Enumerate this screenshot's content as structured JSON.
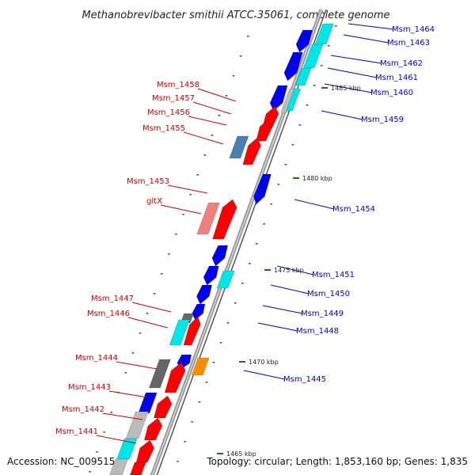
{
  "title": "Methanobrevibacter smithii ATCC 35061, complete genome",
  "accession": "Accession: NC_009515",
  "topology": "Topology: circular; Length: 1,853,160 bp; Genes: 1,835",
  "colors": {
    "forward_cds": "#ff0000",
    "reverse_cds": "#0000ee",
    "rna": "#00e5e5",
    "other_a": "#666666",
    "other_b": "#bbbbbb",
    "other_c": "#ff8c00",
    "other_d": "#4a7fb0",
    "other_e": "#f08080",
    "backbone": "#888888",
    "tick": "#117711",
    "forward_label": "#cc0000",
    "reverse_label": "#0000cc"
  },
  "kbp_marks": [
    {
      "label": "1485 kbp"
    },
    {
      "label": "1480 kbp"
    },
    {
      "label": "1475 kbp"
    },
    {
      "label": "1470 kbp"
    },
    {
      "label": "1465 kbp"
    }
  ],
  "forward_labels": [
    "Msm_1458",
    "Msm_1457",
    "Msm_1456",
    "Msm_1455",
    "Msm_1453",
    "gltX",
    "Msm_1447",
    "Msm_1446",
    "Msm_1444",
    "Msm_1443",
    "Msm_1442",
    "Msm_1441"
  ],
  "reverse_labels": [
    "Msm_1464",
    "Msm_1463",
    "Msm_1462",
    "Msm_1461",
    "Msm_1460",
    "Msm_1459",
    "Msm_1454",
    "Msm_1451",
    "Msm_1450",
    "Msm_1449",
    "Msm_1448",
    "Msm_1445"
  ]
}
